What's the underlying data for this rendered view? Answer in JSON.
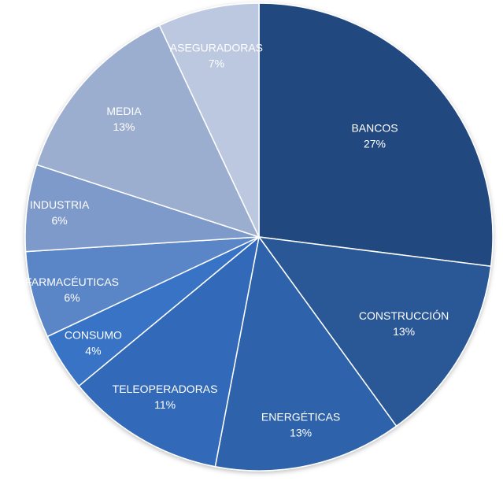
{
  "chart_data": {
    "type": "pie",
    "title": "",
    "slices": [
      {
        "label": "BANCOS",
        "value": 27,
        "value_label": "27%",
        "color": "#22497f"
      },
      {
        "label": "CONSTRUCCIÓN",
        "value": 13,
        "value_label": "13%",
        "color": "#2a5997"
      },
      {
        "label": "ENERGÉTICAS",
        "value": 13,
        "value_label": "13%",
        "color": "#2d62aa"
      },
      {
        "label": "TELEOPERADORAS",
        "value": 11,
        "value_label": "11%",
        "color": "#3169b8"
      },
      {
        "label": "CONSUMO",
        "value": 4,
        "value_label": "4%",
        "color": "#3873c6"
      },
      {
        "label": "FARMACÉUTICAS",
        "value": 6,
        "value_label": "6%",
        "color": "#5a86c8"
      },
      {
        "label": "INDUSTRIA",
        "value": 6,
        "value_label": "6%",
        "color": "#7e9acb"
      },
      {
        "label": "MEDIA",
        "value": 13,
        "value_label": "13%",
        "color": "#9caed0"
      },
      {
        "label": "ASEGURADORAS",
        "value": 7,
        "value_label": "7%",
        "color": "#bcc8e0"
      }
    ],
    "start_angle_deg": 0,
    "direction": "clockwise",
    "legend": "none",
    "labels_inside": true
  }
}
